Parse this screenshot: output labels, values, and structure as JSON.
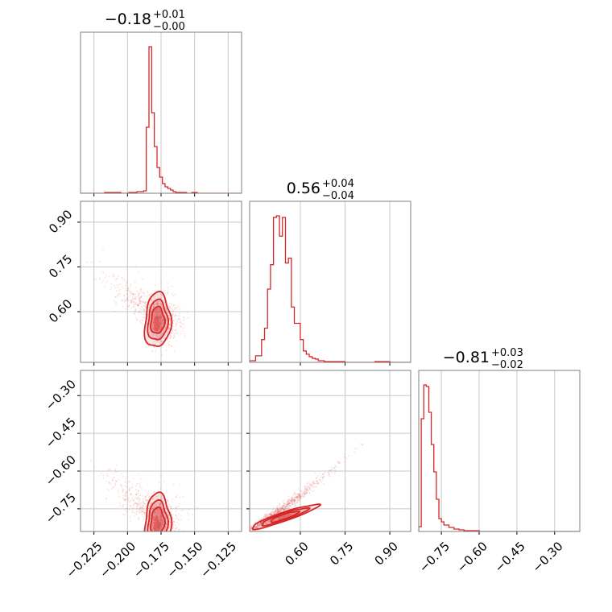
{
  "colors": {
    "accent": "#d62728",
    "grid": "#c8c8c8",
    "frame": "#7f7f7f"
  },
  "params": [
    {
      "title": {
        "median": "−0.18",
        "plus": "+0.01",
        "minus": "−0.00"
      },
      "range": [
        -0.235,
        -0.115
      ],
      "ticks": [
        -0.225,
        -0.2,
        -0.175,
        -0.15,
        -0.125
      ],
      "tick_labels": [
        "−0.225",
        "−0.200",
        "−0.175",
        "−0.150",
        "−0.125"
      ]
    },
    {
      "title": {
        "median": "0.56",
        "plus": "+0.04",
        "minus": "−0.04"
      },
      "range": [
        0.43,
        0.97
      ],
      "ticks": [
        0.6,
        0.75,
        0.9
      ],
      "tick_labels": [
        "0.60",
        "0.75",
        "0.90"
      ]
    },
    {
      "title": {
        "median": "−0.81",
        "plus": "+0.03",
        "minus": "−0.02"
      },
      "range": [
        -0.84,
        -0.2
      ],
      "ticks": [
        -0.75,
        -0.6,
        -0.45,
        -0.3
      ],
      "tick_labels": [
        "−0.75",
        "−0.60",
        "−0.45",
        "−0.30"
      ]
    }
  ],
  "chart_data": {
    "type": "corner",
    "grid": true,
    "hist_1d": [
      {
        "param": 0,
        "edges": [
          -0.235,
          -0.229,
          -0.223,
          -0.217,
          -0.211,
          -0.205,
          -0.199,
          -0.193,
          -0.188,
          -0.186,
          -0.184,
          -0.182,
          -0.18,
          -0.178,
          -0.176,
          -0.174,
          -0.172,
          -0.17,
          -0.168,
          -0.166,
          -0.164,
          -0.162,
          -0.16,
          -0.156,
          -0.152,
          -0.148,
          -0.14,
          -0.115
        ],
        "counts": [
          0,
          0,
          0,
          1,
          1,
          0,
          1,
          2,
          3,
          82,
          182,
          100,
          58,
          32,
          20,
          12,
          8,
          6,
          4,
          2,
          1,
          1,
          1,
          0,
          1,
          0,
          0
        ]
      },
      {
        "param": 1,
        "edges": [
          0.43,
          0.45,
          0.47,
          0.48,
          0.49,
          0.5,
          0.51,
          0.52,
          0.53,
          0.54,
          0.55,
          0.56,
          0.57,
          0.58,
          0.59,
          0.6,
          0.61,
          0.62,
          0.63,
          0.64,
          0.65,
          0.66,
          0.67,
          0.68,
          0.7,
          0.72,
          0.75,
          0.8,
          0.85,
          0.9,
          0.97
        ],
        "counts": [
          2,
          8,
          28,
          42,
          90,
          120,
          178,
          180,
          155,
          178,
          122,
          128,
          68,
          48,
          48,
          28,
          14,
          10,
          7,
          5,
          4,
          2,
          2,
          1,
          1,
          1,
          0,
          0,
          1,
          0
        ]
      },
      {
        "param": 2,
        "edges": [
          -0.84,
          -0.83,
          -0.82,
          -0.81,
          -0.8,
          -0.79,
          -0.78,
          -0.77,
          -0.76,
          -0.75,
          -0.74,
          -0.72,
          -0.7,
          -0.68,
          -0.66,
          -0.64,
          -0.6,
          -0.2
        ],
        "counts": [
          6,
          140,
          182,
          180,
          148,
          108,
          74,
          40,
          16,
          12,
          8,
          5,
          3,
          2,
          1,
          1,
          0
        ]
      }
    ],
    "hist_2d": [
      {
        "x_param": 0,
        "y_param": 1,
        "center": [
          -0.18,
          0.57
        ]
      },
      {
        "x_param": 0,
        "y_param": 2,
        "center": [
          -0.18,
          -0.8
        ]
      },
      {
        "x_param": 1,
        "y_param": 2,
        "center": [
          0.56,
          -0.81
        ],
        "correlated": true
      }
    ]
  }
}
